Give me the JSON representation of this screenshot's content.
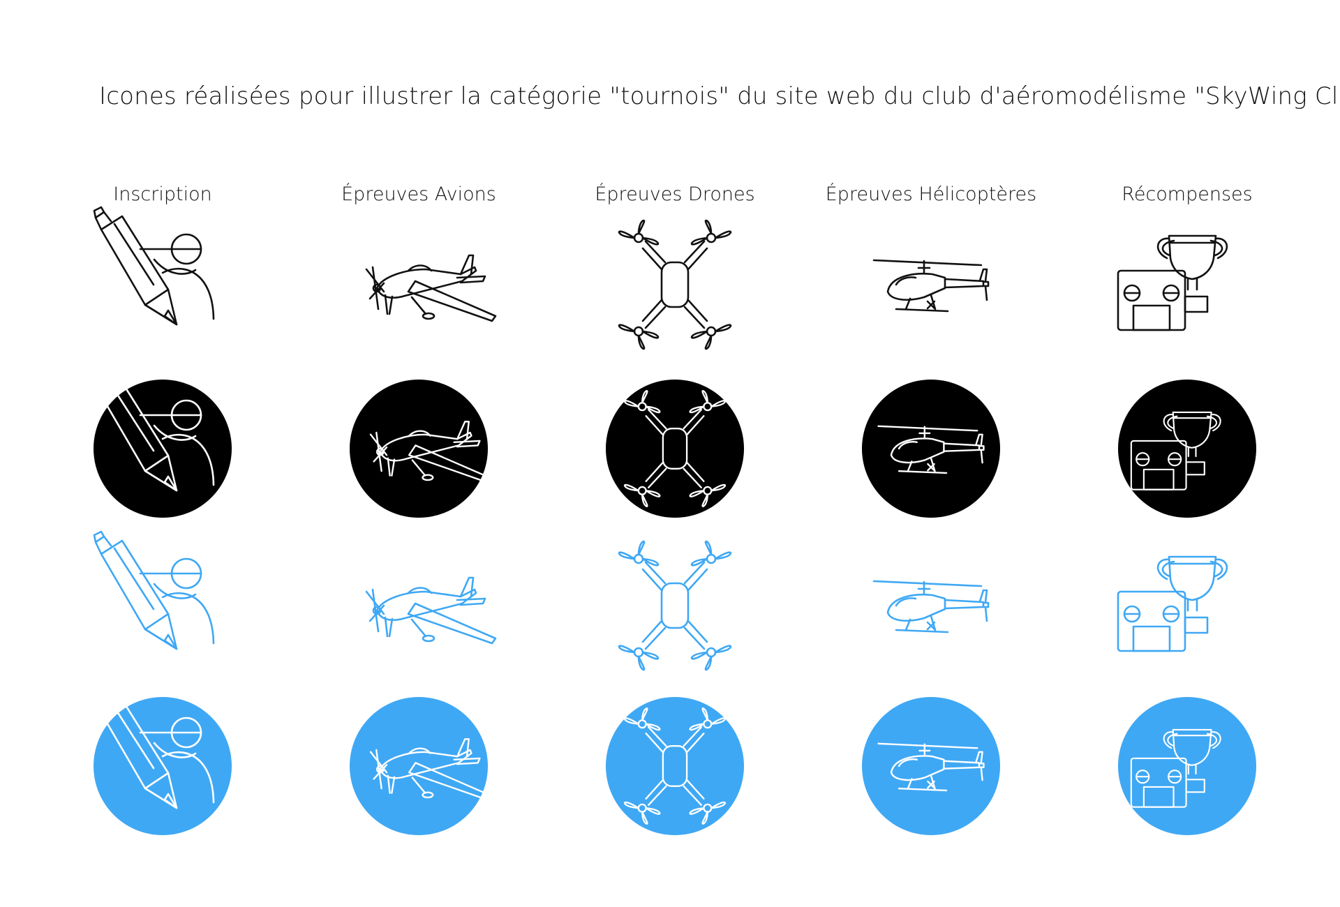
{
  "title": "Icones réalisées pour illustrer la catégorie \"tournois\" du site web du club d'aéromodélisme \"SkyWing Club\"",
  "columns": [
    {
      "label": "Inscription",
      "icon": "pen-pilot-icon"
    },
    {
      "label": "Épreuves Avions",
      "icon": "airplane-icon"
    },
    {
      "label": "Épreuves Drones",
      "icon": "drone-icon"
    },
    {
      "label": "Épreuves Hélicoptères",
      "icon": "helicopter-icon"
    },
    {
      "label": "Récompenses",
      "icon": "trophy-remote-icon"
    }
  ],
  "variants": [
    {
      "name": "outline-black",
      "stroke": "#111111",
      "fill": "none"
    },
    {
      "name": "black-circle",
      "stroke": "#ffffff",
      "fill": "#000000"
    },
    {
      "name": "outline-blue",
      "stroke": "#3fa8f4",
      "fill": "none"
    },
    {
      "name": "blue-circle",
      "stroke": "#ffffff",
      "fill": "#3fa8f4"
    }
  ],
  "colors": {
    "black": "#000000",
    "blue": "#3fa8f4",
    "background": "#ffffff"
  }
}
